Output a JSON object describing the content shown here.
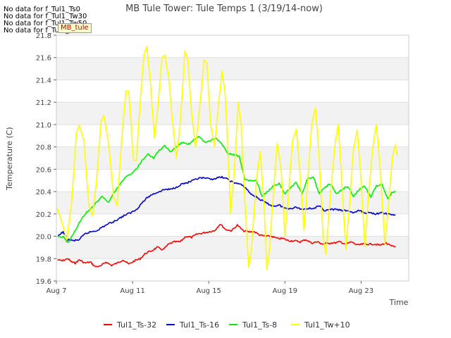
{
  "chart_data": {
    "type": "line",
    "title": "MB Tule Tower: Tule Temps 1 (3/19/14-now)",
    "xlabel": "Time",
    "ylabel": "Temperature (C)",
    "xlim": [
      7,
      25.5
    ],
    "ylim": [
      19.6,
      21.8
    ],
    "xticks": [
      7,
      11,
      15,
      19,
      23
    ],
    "xtick_labels": [
      "Aug 7",
      "Aug 11",
      "Aug 15",
      "Aug 19",
      "Aug 23"
    ],
    "yticks": [
      19.6,
      19.8,
      20.0,
      20.2,
      20.4,
      20.6,
      20.8,
      21.0,
      21.2,
      21.4,
      21.6,
      21.8
    ],
    "ytick_labels": [
      "19.6",
      "19.8",
      "20.0",
      "20.2",
      "20.4",
      "20.6",
      "20.8",
      "21.0",
      "21.2",
      "21.4",
      "21.6",
      "21.8"
    ],
    "grid": true,
    "legend_position": "bottom",
    "series": [
      {
        "name": "Tul1_Ts-32",
        "color": "#ff0000",
        "points": [
          [
            7.05,
            19.79
          ],
          [
            7.3,
            19.78
          ],
          [
            7.6,
            19.8
          ],
          [
            7.8,
            19.77
          ],
          [
            8.0,
            19.76
          ],
          [
            8.2,
            19.79
          ],
          [
            8.5,
            19.76
          ],
          [
            8.8,
            19.77
          ],
          [
            9.0,
            19.73
          ],
          [
            9.3,
            19.73
          ],
          [
            9.6,
            19.77
          ],
          [
            9.9,
            19.74
          ],
          [
            10.2,
            19.76
          ],
          [
            10.5,
            19.79
          ],
          [
            10.8,
            19.75
          ],
          [
            11.1,
            19.78
          ],
          [
            11.4,
            19.8
          ],
          [
            11.7,
            19.85
          ],
          [
            12.0,
            19.87
          ],
          [
            12.3,
            19.9
          ],
          [
            12.6,
            19.88
          ],
          [
            12.9,
            19.93
          ],
          [
            13.2,
            19.95
          ],
          [
            13.5,
            19.95
          ],
          [
            13.8,
            20.0
          ],
          [
            14.1,
            19.99
          ],
          [
            14.4,
            20.02
          ],
          [
            14.7,
            20.03
          ],
          [
            15.0,
            20.04
          ],
          [
            15.3,
            20.05
          ],
          [
            15.6,
            20.11
          ],
          [
            15.9,
            20.06
          ],
          [
            16.2,
            20.05
          ],
          [
            16.5,
            20.1
          ],
          [
            16.8,
            20.05
          ],
          [
            17.1,
            20.04
          ],
          [
            17.4,
            20.04
          ],
          [
            17.7,
            20.01
          ],
          [
            18.0,
            20.0
          ],
          [
            18.3,
            20.0
          ],
          [
            18.6,
            19.98
          ],
          [
            18.9,
            19.98
          ],
          [
            19.2,
            19.96
          ],
          [
            19.5,
            19.96
          ],
          [
            19.8,
            19.95
          ],
          [
            20.1,
            19.97
          ],
          [
            20.4,
            19.94
          ],
          [
            20.7,
            19.95
          ],
          [
            21.0,
            19.93
          ],
          [
            21.3,
            19.94
          ],
          [
            21.6,
            19.94
          ],
          [
            21.9,
            19.95
          ],
          [
            22.2,
            19.93
          ],
          [
            22.5,
            19.95
          ],
          [
            22.8,
            19.92
          ],
          [
            23.1,
            19.93
          ],
          [
            23.4,
            19.93
          ],
          [
            23.7,
            19.93
          ],
          [
            24.0,
            19.92
          ],
          [
            24.3,
            19.94
          ],
          [
            24.6,
            19.91
          ],
          [
            24.8,
            19.91
          ]
        ]
      },
      {
        "name": "Tul1_Ts-16",
        "color": "#0000cc",
        "points": [
          [
            7.1,
            20.0
          ],
          [
            7.35,
            20.04
          ],
          [
            7.6,
            19.97
          ],
          [
            7.9,
            19.96
          ],
          [
            8.2,
            19.97
          ],
          [
            8.5,
            20.02
          ],
          [
            8.8,
            20.04
          ],
          [
            9.1,
            20.05
          ],
          [
            9.4,
            20.08
          ],
          [
            9.7,
            20.11
          ],
          [
            10.0,
            20.13
          ],
          [
            10.3,
            20.16
          ],
          [
            10.6,
            20.19
          ],
          [
            10.9,
            20.21
          ],
          [
            11.2,
            20.24
          ],
          [
            11.5,
            20.3
          ],
          [
            11.8,
            20.35
          ],
          [
            12.1,
            20.38
          ],
          [
            12.4,
            20.4
          ],
          [
            12.7,
            20.42
          ],
          [
            13.0,
            20.42
          ],
          [
            13.3,
            20.44
          ],
          [
            13.6,
            20.47
          ],
          [
            13.9,
            20.48
          ],
          [
            14.2,
            20.5
          ],
          [
            14.5,
            20.52
          ],
          [
            14.8,
            20.52
          ],
          [
            15.1,
            20.51
          ],
          [
            15.4,
            20.52
          ],
          [
            15.7,
            20.53
          ],
          [
            16.0,
            20.51
          ],
          [
            16.3,
            20.48
          ],
          [
            16.6,
            20.47
          ],
          [
            16.9,
            20.44
          ],
          [
            17.2,
            20.38
          ],
          [
            17.5,
            20.35
          ],
          [
            17.8,
            20.32
          ],
          [
            18.1,
            20.29
          ],
          [
            18.4,
            20.27
          ],
          [
            18.7,
            20.28
          ],
          [
            19.0,
            20.25
          ],
          [
            19.3,
            20.25
          ],
          [
            19.6,
            20.26
          ],
          [
            19.9,
            20.24
          ],
          [
            20.2,
            20.25
          ],
          [
            20.5,
            20.25
          ],
          [
            20.8,
            20.27
          ],
          [
            21.1,
            20.23
          ],
          [
            21.4,
            20.24
          ],
          [
            21.7,
            20.24
          ],
          [
            22.0,
            20.23
          ],
          [
            22.3,
            20.23
          ],
          [
            22.6,
            20.21
          ],
          [
            22.9,
            20.23
          ],
          [
            23.2,
            20.21
          ],
          [
            23.5,
            20.21
          ],
          [
            23.8,
            20.2
          ],
          [
            24.1,
            20.21
          ],
          [
            24.4,
            20.2
          ],
          [
            24.8,
            20.19
          ]
        ]
      },
      {
        "name": "Tul1_Ts-8",
        "color": "#00ee00",
        "points": [
          [
            7.05,
            20.0
          ],
          [
            7.4,
            19.99
          ],
          [
            7.6,
            19.94
          ],
          [
            7.9,
            20.02
          ],
          [
            8.2,
            20.12
          ],
          [
            8.5,
            20.2
          ],
          [
            8.8,
            20.25
          ],
          [
            9.1,
            20.3
          ],
          [
            9.4,
            20.36
          ],
          [
            9.7,
            20.3
          ],
          [
            10.0,
            20.38
          ],
          [
            10.3,
            20.46
          ],
          [
            10.6,
            20.52
          ],
          [
            10.9,
            20.56
          ],
          [
            11.2,
            20.6
          ],
          [
            11.5,
            20.68
          ],
          [
            11.8,
            20.74
          ],
          [
            12.1,
            20.7
          ],
          [
            12.4,
            20.77
          ],
          [
            12.7,
            20.81
          ],
          [
            13.0,
            20.75
          ],
          [
            13.3,
            20.8
          ],
          [
            13.6,
            20.84
          ],
          [
            13.9,
            20.82
          ],
          [
            14.2,
            20.86
          ],
          [
            14.5,
            20.89
          ],
          [
            14.8,
            20.84
          ],
          [
            15.1,
            20.86
          ],
          [
            15.4,
            20.88
          ],
          [
            15.7,
            20.82
          ],
          [
            16.0,
            20.74
          ],
          [
            16.3,
            20.73
          ],
          [
            16.6,
            20.72
          ],
          [
            16.9,
            20.5
          ],
          [
            17.2,
            20.5
          ],
          [
            17.5,
            20.5
          ],
          [
            17.8,
            20.36
          ],
          [
            18.1,
            20.4
          ],
          [
            18.4,
            20.45
          ],
          [
            18.7,
            20.47
          ],
          [
            19.0,
            20.38
          ],
          [
            19.3,
            20.44
          ],
          [
            19.6,
            20.48
          ],
          [
            19.9,
            20.38
          ],
          [
            20.2,
            20.52
          ],
          [
            20.5,
            20.53
          ],
          [
            20.8,
            20.38
          ],
          [
            21.1,
            20.44
          ],
          [
            21.4,
            20.47
          ],
          [
            21.7,
            20.38
          ],
          [
            22.0,
            20.42
          ],
          [
            22.3,
            20.45
          ],
          [
            22.6,
            20.36
          ],
          [
            22.9,
            20.42
          ],
          [
            23.2,
            20.45
          ],
          [
            23.5,
            20.35
          ],
          [
            23.8,
            20.45
          ],
          [
            24.1,
            20.47
          ],
          [
            24.4,
            20.33
          ],
          [
            24.6,
            20.39
          ],
          [
            24.8,
            20.4
          ]
        ]
      },
      {
        "name": "Tul1_Tw+10",
        "color": "#ffff00",
        "points": [
          [
            7.05,
            20.25
          ],
          [
            7.3,
            20.12
          ],
          [
            7.55,
            19.97
          ],
          [
            7.8,
            20.3
          ],
          [
            8.05,
            20.92
          ],
          [
            8.2,
            21.0
          ],
          [
            8.45,
            20.85
          ],
          [
            8.7,
            20.28
          ],
          [
            8.9,
            20.18
          ],
          [
            9.1,
            20.48
          ],
          [
            9.35,
            21.03
          ],
          [
            9.5,
            21.08
          ],
          [
            9.75,
            20.82
          ],
          [
            10.0,
            20.35
          ],
          [
            10.2,
            20.27
          ],
          [
            10.4,
            20.8
          ],
          [
            10.65,
            21.3
          ],
          [
            10.8,
            21.3
          ],
          [
            11.05,
            20.68
          ],
          [
            11.2,
            20.68
          ],
          [
            11.4,
            21.2
          ],
          [
            11.6,
            21.62
          ],
          [
            11.75,
            21.7
          ],
          [
            11.95,
            21.35
          ],
          [
            12.15,
            20.88
          ],
          [
            12.3,
            21.1
          ],
          [
            12.55,
            21.6
          ],
          [
            12.7,
            21.62
          ],
          [
            12.9,
            21.42
          ],
          [
            13.1,
            21.02
          ],
          [
            13.3,
            20.7
          ],
          [
            13.5,
            21.0
          ],
          [
            13.75,
            21.66
          ],
          [
            13.9,
            21.58
          ],
          [
            14.1,
            21.1
          ],
          [
            14.3,
            20.8
          ],
          [
            14.5,
            21.1
          ],
          [
            14.75,
            21.58
          ],
          [
            14.9,
            21.55
          ],
          [
            15.1,
            21.0
          ],
          [
            15.3,
            20.8
          ],
          [
            15.5,
            21.15
          ],
          [
            15.7,
            21.48
          ],
          [
            15.85,
            21.3
          ],
          [
            16.0,
            20.8
          ],
          [
            16.15,
            20.2
          ],
          [
            16.35,
            20.6
          ],
          [
            16.55,
            21.2
          ],
          [
            16.7,
            21.0
          ],
          [
            16.9,
            20.3
          ],
          [
            17.1,
            19.72
          ],
          [
            17.25,
            19.9
          ],
          [
            17.5,
            20.5
          ],
          [
            17.7,
            20.76
          ],
          [
            17.9,
            20.3
          ],
          [
            18.05,
            19.7
          ],
          [
            18.2,
            19.9
          ],
          [
            18.4,
            20.4
          ],
          [
            18.6,
            20.83
          ],
          [
            18.8,
            20.6
          ],
          [
            19.0,
            20.0
          ],
          [
            19.2,
            20.4
          ],
          [
            19.4,
            20.85
          ],
          [
            19.6,
            20.96
          ],
          [
            19.8,
            20.55
          ],
          [
            20.0,
            20.05
          ],
          [
            20.2,
            20.5
          ],
          [
            20.4,
            21.0
          ],
          [
            20.6,
            21.15
          ],
          [
            20.8,
            20.7
          ],
          [
            21.0,
            20.0
          ],
          [
            21.15,
            19.84
          ],
          [
            21.4,
            20.4
          ],
          [
            21.65,
            20.85
          ],
          [
            21.8,
            21.0
          ],
          [
            22.0,
            20.45
          ],
          [
            22.2,
            19.88
          ],
          [
            22.4,
            20.3
          ],
          [
            22.6,
            20.78
          ],
          [
            22.8,
            20.95
          ],
          [
            23.0,
            20.5
          ],
          [
            23.2,
            19.9
          ],
          [
            23.4,
            20.4
          ],
          [
            23.65,
            20.85
          ],
          [
            23.8,
            21.0
          ],
          [
            24.0,
            20.6
          ],
          [
            24.25,
            19.93
          ],
          [
            24.45,
            20.3
          ],
          [
            24.65,
            20.72
          ],
          [
            24.8,
            20.82
          ],
          [
            24.9,
            20.72
          ]
        ]
      }
    ],
    "no_data_notes": [
      "No data for f_Tul1_Ts0",
      "No data for f_Tul1_Tw30",
      "No data for f_Tul1_Tw50",
      "No data for f_Tul1_Tw60"
    ],
    "annotation": "MB_tule"
  }
}
